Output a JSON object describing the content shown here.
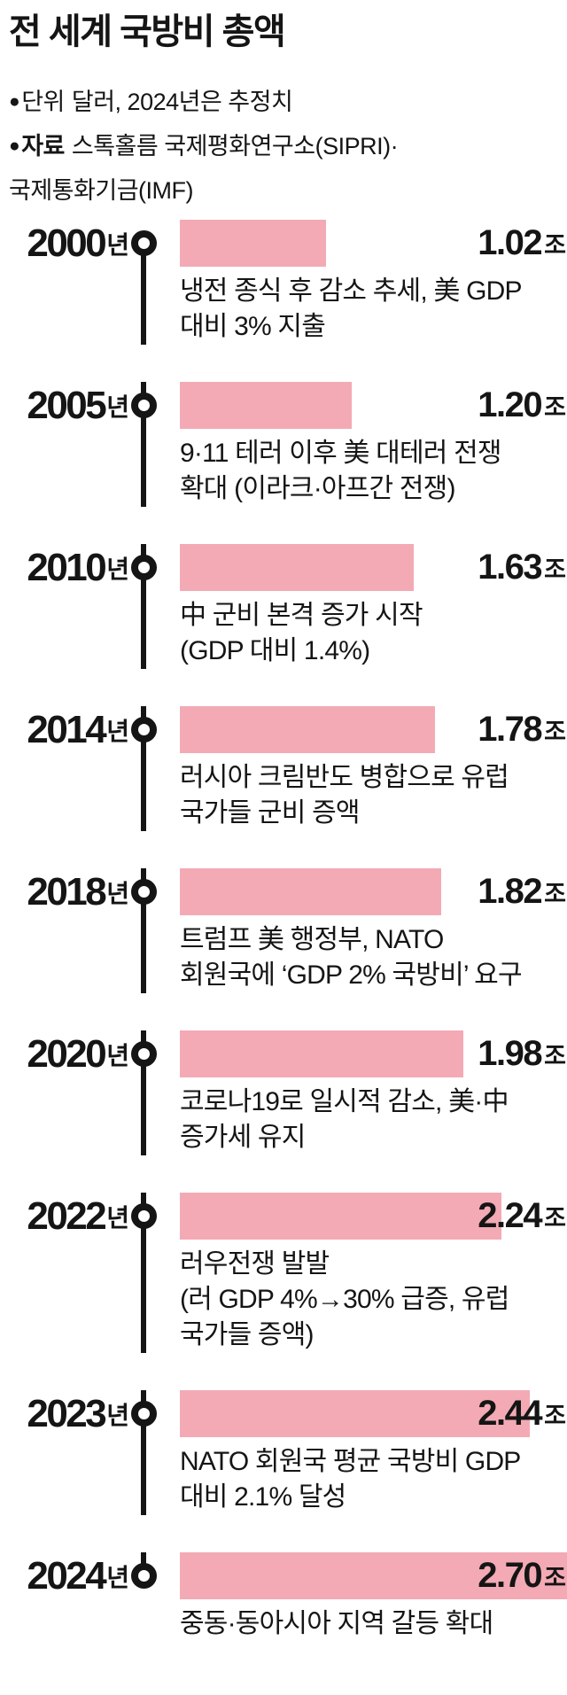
{
  "title": "전 세계 국방비 총액",
  "notes": {
    "unit": {
      "bullet": "●",
      "label": "단위",
      "text": "달러, 2024년은 추정치"
    },
    "source": {
      "bullet": "●",
      "label": "자료",
      "text": "스톡홀름 국제평화연구소(SIPRI)·"
    },
    "source_cont": {
      "text": "국제통화기금(IMF)"
    }
  },
  "rows": [
    {
      "year": "2000",
      "year_suffix": "년",
      "value": 1.02,
      "value_display": "1.02",
      "unit": "조",
      "desc": "냉전 종식 후 감소 추세, 美 GDP\n대비 3% 지출"
    },
    {
      "year": "2005",
      "year_suffix": "년",
      "value": 1.2,
      "value_display": "1.20",
      "unit": "조",
      "desc": "9·11 테러 이후 美 대테러 전쟁\n확대 (이라크·아프간 전쟁)"
    },
    {
      "year": "2010",
      "year_suffix": "년",
      "value": 1.63,
      "value_display": "1.63",
      "unit": "조",
      "desc": "中 군비 본격 증가 시작\n(GDP 대비 1.4%)"
    },
    {
      "year": "2014",
      "year_suffix": "년",
      "value": 1.78,
      "value_display": "1.78",
      "unit": "조",
      "desc": "러시아 크림반도 병합으로 유럽\n국가들 군비 증액"
    },
    {
      "year": "2018",
      "year_suffix": "년",
      "value": 1.82,
      "value_display": "1.82",
      "unit": "조",
      "desc": "트럼프 美 행정부, NATO\n회원국에 ‘GDP 2% 국방비’ 요구"
    },
    {
      "year": "2020",
      "year_suffix": "년",
      "value": 1.98,
      "value_display": "1.98",
      "unit": "조",
      "desc": "코로나19로 일시적 감소, 美·中\n증가세 유지"
    },
    {
      "year": "2022",
      "year_suffix": "년",
      "value": 2.24,
      "value_display": "2.24",
      "unit": "조",
      "desc": "러우전쟁 발발\n(러 GDP 4%→30% 급증, 유럽\n국가들 증액)"
    },
    {
      "year": "2023",
      "year_suffix": "년",
      "value": 2.44,
      "value_display": "2.44",
      "unit": "조",
      "desc": "NATO 회원국 평균 국방비 GDP\n대비 2.1% 달성"
    },
    {
      "year": "2024",
      "year_suffix": "년",
      "value": 2.7,
      "value_display": "2.70",
      "unit": "조",
      "desc": "중동·동아시아 지역 갈등 확대"
    }
  ],
  "chart_data": {
    "type": "bar",
    "orientation": "horizontal",
    "title": "전 세계 국방비 총액",
    "unit_note": "단위 달러, 2024년은 추정치",
    "source_note": "자료 스톡홀름 국제평화연구소(SIPRI)·국제통화기금(IMF)",
    "categories": [
      "2000년",
      "2005년",
      "2010년",
      "2014년",
      "2018년",
      "2020년",
      "2022년",
      "2023년",
      "2024년"
    ],
    "values": [
      1.02,
      1.2,
      1.63,
      1.78,
      1.82,
      1.98,
      2.24,
      2.44,
      2.7
    ],
    "value_labels": [
      "1.02조",
      "1.20조",
      "1.63조",
      "1.78조",
      "1.82조",
      "1.98조",
      "2.24조",
      "2.44조",
      "2.70조"
    ],
    "annotations": [
      "냉전 종식 후 감소 추세, 美 GDP 대비 3% 지출",
      "9·11 테러 이후 美 대테러 전쟁 확대 (이라크·아프간 전쟁)",
      "中 군비 본격 증가 시작 (GDP 대비 1.4%)",
      "러시아 크림반도 병합으로 유럽 국가들 군비 증액",
      "트럼프 美 행정부, NATO 회원국에 ‘GDP 2% 국방비’ 요구",
      "코로나19로 일시적 감소, 美·中 증가세 유지",
      "러우전쟁 발발 (러 GDP 4%→30% 급증, 유럽 국가들 증액)",
      "NATO 회원국 평균 국방비 GDP 대비 2.1% 달성",
      "중동·동아시아 지역 갈등 확대"
    ],
    "xlim": [
      0,
      2.7
    ],
    "grid": false,
    "legend": false,
    "bar_color": "#F3AAB5",
    "timeline_color": "#151515"
  }
}
